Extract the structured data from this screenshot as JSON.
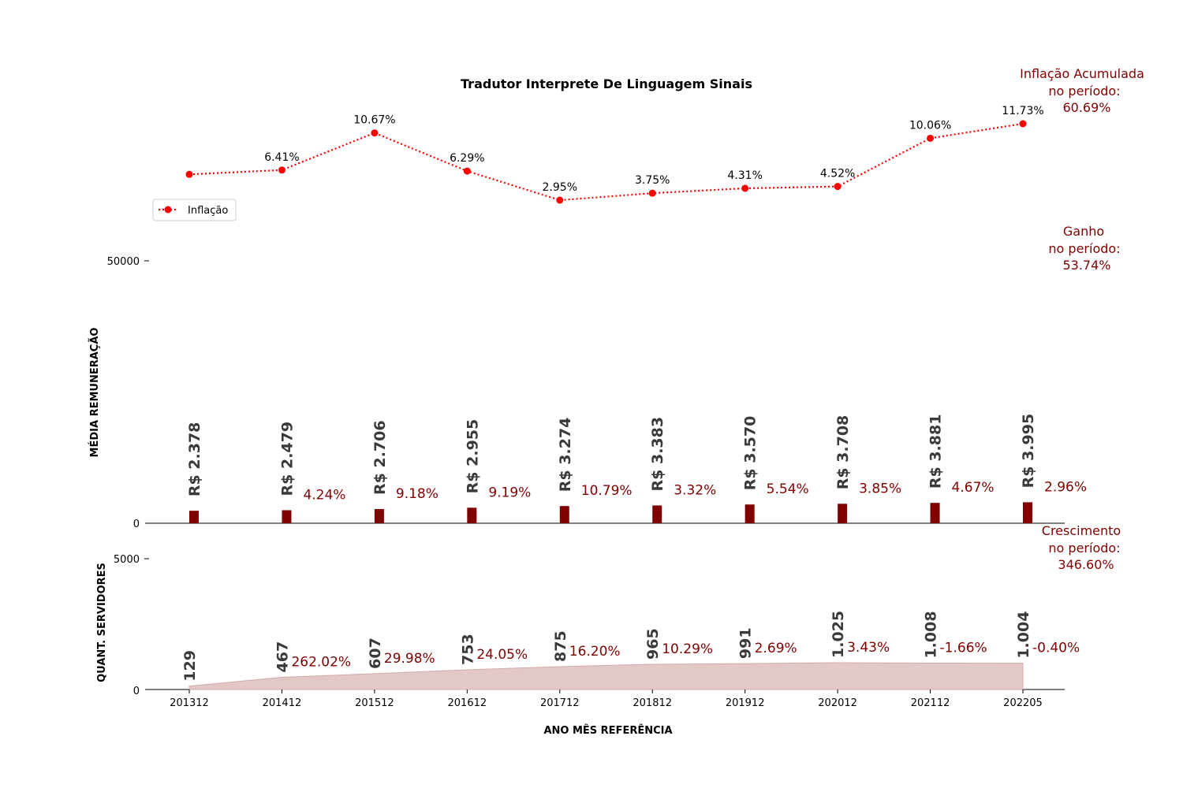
{
  "chart_data": {
    "type": "bar",
    "title": "Tradutor Interprete De Linguagem Sinais",
    "xlabel": "ANO MÊS REFERÊNCIA",
    "categories": [
      "201312",
      "201412",
      "201512",
      "201612",
      "201712",
      "201812",
      "201912",
      "202012",
      "202112",
      "202205"
    ],
    "inflation": {
      "name": "Inflação",
      "color": "#ff0000",
      "values": [
        5.91,
        6.41,
        10.67,
        6.29,
        2.95,
        3.75,
        4.31,
        4.52,
        10.06,
        11.73
      ],
      "labels": [
        "",
        "6.41%",
        "10.67%",
        "6.29%",
        "2.95%",
        "3.75%",
        "4.31%",
        "4.52%",
        "10.06%",
        "11.73%"
      ]
    },
    "salary": {
      "ylabel": "MÉDIA REMUNERAÇÃO",
      "ylim": [
        0,
        50000
      ],
      "yticks": [
        "0",
        "50000"
      ],
      "color": "#800000",
      "values": [
        2378,
        2479,
        2706,
        2955,
        3274,
        3383,
        3570,
        3708,
        3881,
        3995
      ],
      "labels": [
        "R$ 2.378",
        "R$ 2.479",
        "R$ 2.706",
        "R$ 2.955",
        "R$ 3.274",
        "R$ 3.383",
        "R$ 3.570",
        "R$ 3.708",
        "R$ 3.881",
        "R$ 3.995"
      ],
      "growth_labels": [
        "4.24%",
        "9.18%",
        "9.19%",
        "10.79%",
        "3.32%",
        "5.54%",
        "3.85%",
        "4.67%",
        "2.96%"
      ]
    },
    "staff": {
      "ylabel": "QUANT. SERVIDORES",
      "ylim": [
        0,
        5000
      ],
      "yticks": [
        "0",
        "5000"
      ],
      "color": "#e3c8c8",
      "values": [
        129,
        467,
        607,
        753,
        875,
        965,
        991,
        1025,
        1008,
        1004
      ],
      "labels": [
        "129",
        "467",
        "607",
        "753",
        "875",
        "965",
        "991",
        "1.025",
        "1.008",
        "1.004"
      ],
      "growth_labels": [
        "262.02%",
        "29.98%",
        "24.05%",
        "16.20%",
        "10.29%",
        "2.69%",
        "3.43%",
        "-1.66%",
        "-0.40%"
      ]
    },
    "annotations": {
      "inflation_total": [
        "Inflação Acumulada",
        "no período:",
        "60.69%"
      ],
      "salary_gain": [
        "Ganho",
        "no período:",
        "53.74%"
      ],
      "staff_growth": [
        "Crescimento",
        "no período:",
        "346.60%"
      ]
    }
  }
}
